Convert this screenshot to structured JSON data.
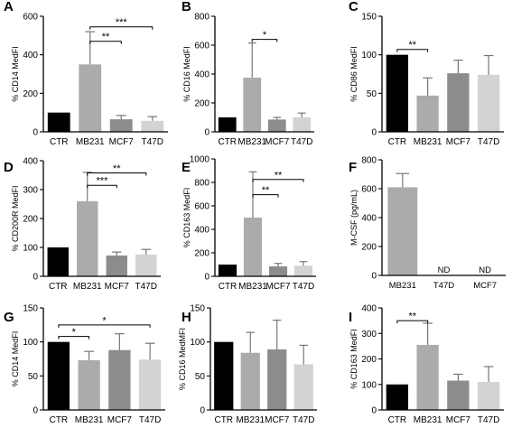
{
  "colors": {
    "CTR": "#000000",
    "MB231": "#ababab",
    "MCF7": "#8c8c8c",
    "T47D": "#d3d3d3",
    "error_bar": "#777777",
    "axis": "#000000"
  },
  "chart_data": [
    {
      "id": "A",
      "panel_label": "A",
      "type": "bar",
      "categories": [
        "CTR",
        "MB231",
        "MCF7",
        "T47D"
      ],
      "values": [
        100,
        350,
        65,
        57
      ],
      "errors": [
        0,
        170,
        20,
        22
      ],
      "ylabel": "% CD14 MedFI",
      "ylim": [
        0,
        600
      ],
      "yticks": [
        0,
        200,
        400,
        600
      ],
      "significance": [
        {
          "from": 1,
          "to": 2,
          "label": "**",
          "y": 470
        },
        {
          "from": 1,
          "to": 3,
          "label": "***",
          "y": 545
        }
      ]
    },
    {
      "id": "B",
      "panel_label": "B",
      "type": "bar",
      "categories": [
        "CTR",
        "MB231",
        "MCF7",
        "T47D"
      ],
      "values": [
        100,
        375,
        85,
        100
      ],
      "errors": [
        0,
        240,
        15,
        30
      ],
      "ylabel": "% CD16 MedFI",
      "ylim": [
        0,
        800
      ],
      "yticks": [
        0,
        200,
        400,
        600,
        800
      ],
      "significance": [
        {
          "from": 1,
          "to": 2,
          "label": "*",
          "y": 640
        }
      ]
    },
    {
      "id": "C",
      "panel_label": "C",
      "type": "bar",
      "categories": [
        "CTR",
        "MB231",
        "MCF7",
        "T47D"
      ],
      "values": [
        100,
        47,
        76,
        74
      ],
      "errors": [
        0,
        23,
        17,
        25
      ],
      "ylabel": "% CD86 MedFI",
      "ylim": [
        0,
        150
      ],
      "yticks": [
        0,
        50,
        100,
        150
      ],
      "significance": [
        {
          "from": 0,
          "to": 1,
          "label": "**",
          "y": 107
        }
      ]
    },
    {
      "id": "D",
      "panel_label": "D",
      "type": "bar",
      "categories": [
        "CTR",
        "MB231",
        "MCF7",
        "T47D"
      ],
      "values": [
        100,
        260,
        72,
        75
      ],
      "errors": [
        0,
        100,
        12,
        18
      ],
      "ylabel": "% CD200R MedFI",
      "ylim": [
        0,
        400
      ],
      "yticks": [
        0,
        100,
        200,
        300,
        400
      ],
      "significance": [
        {
          "from": 1,
          "to": 2,
          "label": "***",
          "y": 315
        },
        {
          "from": 1,
          "to": 3,
          "label": "**",
          "y": 358
        }
      ]
    },
    {
      "id": "E",
      "panel_label": "E",
      "type": "bar",
      "categories": [
        "CTR",
        "MB231",
        "MCF7",
        "T47D"
      ],
      "values": [
        100,
        500,
        85,
        90
      ],
      "errors": [
        0,
        390,
        25,
        35
      ],
      "ylabel": "% CD163 MedFI",
      "ylim": [
        0,
        1000
      ],
      "yticks": [
        0,
        200,
        400,
        600,
        800,
        1000
      ],
      "significance": [
        {
          "from": 1,
          "to": 2,
          "label": "**",
          "y": 695
        },
        {
          "from": 1,
          "to": 3,
          "label": "**",
          "y": 825
        }
      ]
    },
    {
      "id": "F",
      "panel_label": "F",
      "type": "bar",
      "categories": [
        "MB231",
        "T47D",
        "MCF7"
      ],
      "bar_colors": [
        "MB231",
        "T47D",
        "MCF7"
      ],
      "values": [
        610,
        0,
        0
      ],
      "errors": [
        95,
        0,
        0
      ],
      "bar_labels": [
        "",
        "ND",
        "ND"
      ],
      "ylabel": "M-CSF (pg/mL)",
      "ylim": [
        0,
        800
      ],
      "yticks": [
        0,
        200,
        400,
        600,
        800
      ],
      "significance": []
    },
    {
      "id": "G",
      "panel_label": "G",
      "type": "bar",
      "categories": [
        "CTR",
        "MB231",
        "MCF7",
        "T47D"
      ],
      "values": [
        100,
        73,
        88,
        74
      ],
      "errors": [
        0,
        13,
        24,
        24
      ],
      "ylabel": "% CD14 MedFI",
      "ylim": [
        0,
        150
      ],
      "yticks": [
        0,
        50,
        100,
        150
      ],
      "significance": [
        {
          "from": 0,
          "to": 1,
          "label": "*",
          "y": 108
        },
        {
          "from": 0,
          "to": 3,
          "label": "*",
          "y": 125
        }
      ]
    },
    {
      "id": "H",
      "panel_label": "H",
      "type": "bar",
      "categories": [
        "CTR",
        "MB231",
        "MCF7",
        "T47D"
      ],
      "values": [
        100,
        84,
        89,
        67
      ],
      "errors": [
        0,
        30,
        43,
        28
      ],
      "ylabel": "% CD16 MedMFI",
      "ylim": [
        0,
        150
      ],
      "yticks": [
        0,
        50,
        100,
        150
      ],
      "significance": []
    },
    {
      "id": "I",
      "panel_label": "I",
      "type": "bar",
      "categories": [
        "CTR",
        "MB231",
        "MCF7",
        "T47D"
      ],
      "values": [
        100,
        255,
        115,
        110
      ],
      "errors": [
        0,
        85,
        25,
        60
      ],
      "ylabel": "% CD163 MedFI",
      "ylim": [
        0,
        400
      ],
      "yticks": [
        0,
        100,
        200,
        300,
        400
      ],
      "significance": [
        {
          "from": 0,
          "to": 1,
          "label": "**",
          "y": 350
        }
      ]
    }
  ]
}
